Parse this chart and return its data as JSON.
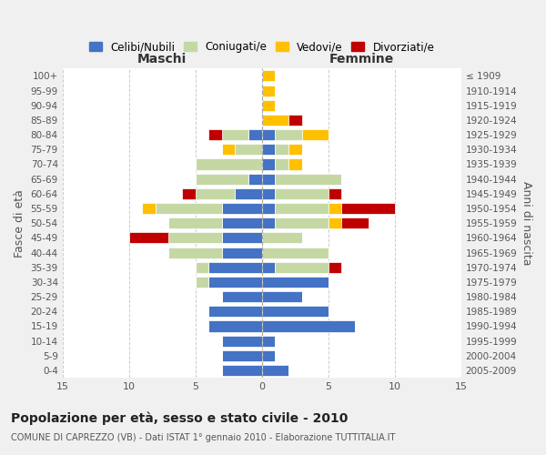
{
  "age_groups": [
    "0-4",
    "5-9",
    "10-14",
    "15-19",
    "20-24",
    "25-29",
    "30-34",
    "35-39",
    "40-44",
    "45-49",
    "50-54",
    "55-59",
    "60-64",
    "65-69",
    "70-74",
    "75-79",
    "80-84",
    "85-89",
    "90-94",
    "95-99",
    "100+"
  ],
  "birth_years": [
    "2005-2009",
    "2000-2004",
    "1995-1999",
    "1990-1994",
    "1985-1989",
    "1980-1984",
    "1975-1979",
    "1970-1974",
    "1965-1969",
    "1960-1964",
    "1955-1959",
    "1950-1954",
    "1945-1949",
    "1940-1944",
    "1935-1939",
    "1930-1934",
    "1925-1929",
    "1920-1924",
    "1915-1919",
    "1910-1914",
    "≤ 1909"
  ],
  "maschi": {
    "celibi": [
      3,
      3,
      3,
      4,
      4,
      3,
      4,
      4,
      3,
      3,
      3,
      3,
      2,
      1,
      0,
      0,
      1,
      0,
      0,
      0,
      0
    ],
    "coniugati": [
      0,
      0,
      0,
      0,
      0,
      0,
      1,
      1,
      4,
      4,
      4,
      5,
      3,
      4,
      5,
      2,
      2,
      0,
      0,
      0,
      0
    ],
    "vedovi": [
      0,
      0,
      0,
      0,
      0,
      0,
      0,
      0,
      0,
      0,
      0,
      1,
      0,
      0,
      0,
      1,
      0,
      0,
      0,
      0,
      0
    ],
    "divorziati": [
      0,
      0,
      0,
      0,
      0,
      0,
      0,
      0,
      0,
      3,
      0,
      0,
      1,
      0,
      0,
      0,
      1,
      0,
      0,
      0,
      0
    ]
  },
  "femmine": {
    "celibi": [
      2,
      1,
      1,
      7,
      5,
      3,
      5,
      1,
      0,
      0,
      1,
      1,
      1,
      1,
      1,
      1,
      1,
      0,
      0,
      0,
      0
    ],
    "coniugati": [
      0,
      0,
      0,
      0,
      0,
      0,
      0,
      4,
      5,
      3,
      4,
      4,
      4,
      5,
      1,
      1,
      2,
      0,
      0,
      0,
      0
    ],
    "vedovi": [
      0,
      0,
      0,
      0,
      0,
      0,
      0,
      0,
      0,
      0,
      1,
      1,
      0,
      0,
      1,
      1,
      2,
      2,
      1,
      1,
      1
    ],
    "divorziati": [
      0,
      0,
      0,
      0,
      0,
      0,
      0,
      1,
      0,
      0,
      2,
      4,
      1,
      0,
      0,
      0,
      0,
      1,
      0,
      0,
      0
    ]
  },
  "colors": {
    "celibi": "#4472c4",
    "coniugati": "#c5d8a4",
    "vedovi": "#ffc000",
    "divorziati": "#c00000"
  },
  "xlim": 15,
  "title": "Popolazione per età, sesso e stato civile - 2010",
  "subtitle": "COMUNE DI CAPREZZO (VB) - Dati ISTAT 1° gennaio 2010 - Elaborazione TUTTITALIA.IT",
  "xlabel_maschi": "Maschi",
  "xlabel_femmine": "Femmine",
  "ylabel_left": "Fasce di età",
  "ylabel_right": "Anni di nascita",
  "legend_labels": [
    "Celibi/Nubili",
    "Coniugati/e",
    "Vedovi/e",
    "Divorziati/e"
  ],
  "bg_color": "#f0f0f0",
  "plot_bg_color": "#ffffff"
}
